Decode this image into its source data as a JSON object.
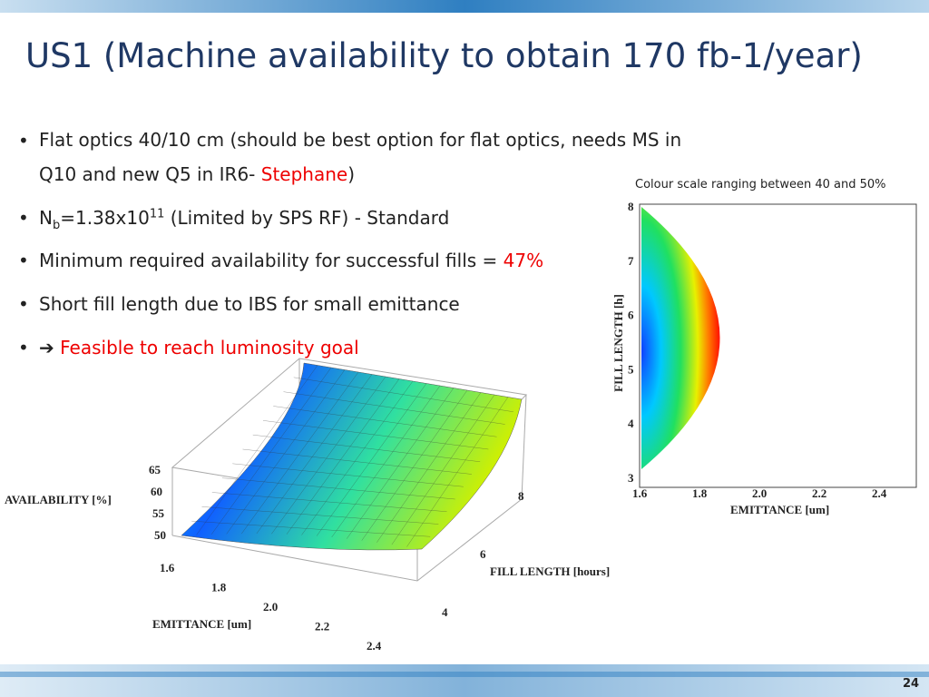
{
  "header": {
    "title": "US1 (Machine availability to obtain 170 fb-1/year)"
  },
  "bullets": [
    {
      "marker": "•",
      "parts": [
        "Flat optics 40/10 cm (should be best option for flat optics, needs MS in",
        "Q10 and new Q5 in IR6- ",
        "Stephane",
        ")"
      ]
    },
    {
      "marker": "•",
      "parts": [
        "N",
        "b",
        "=1.38x10",
        "11",
        " (Limited by SPS RF) - Standard"
      ]
    },
    {
      "marker": "•",
      "parts": [
        "Minimum required availability for successful fills = ",
        "47%"
      ]
    },
    {
      "marker": "•",
      "parts": [
        "Short fill length due to IBS for small emittance"
      ]
    },
    {
      "marker": "•",
      "parts": [
        "➔",
        "Feasible to reach luminosity goal"
      ]
    }
  ],
  "contour_plot": {
    "caption": "Colour scale ranging between 40 and 50%",
    "y_label": "FILL LENGTH [h]",
    "x_label": "EMITTANCE [um]",
    "y_ticks": [
      "3",
      "4",
      "5",
      "6",
      "7",
      "8"
    ],
    "x_ticks": [
      "1.6",
      "1.8",
      "2.0",
      "2.2",
      "2.4"
    ]
  },
  "surface_plot": {
    "z_label": "AVAILABILITY [%]",
    "z_ticks": [
      "50",
      "55",
      "60",
      "65"
    ],
    "x_label": "EMITTANCE [um]",
    "x_ticks": [
      "1.6",
      "1.8",
      "2.0",
      "2.2",
      "2.4"
    ],
    "y_label": "FILL LENGTH [hours]",
    "y_ticks": [
      "4",
      "6",
      "8"
    ]
  },
  "footer": {
    "page_number": "24"
  }
}
